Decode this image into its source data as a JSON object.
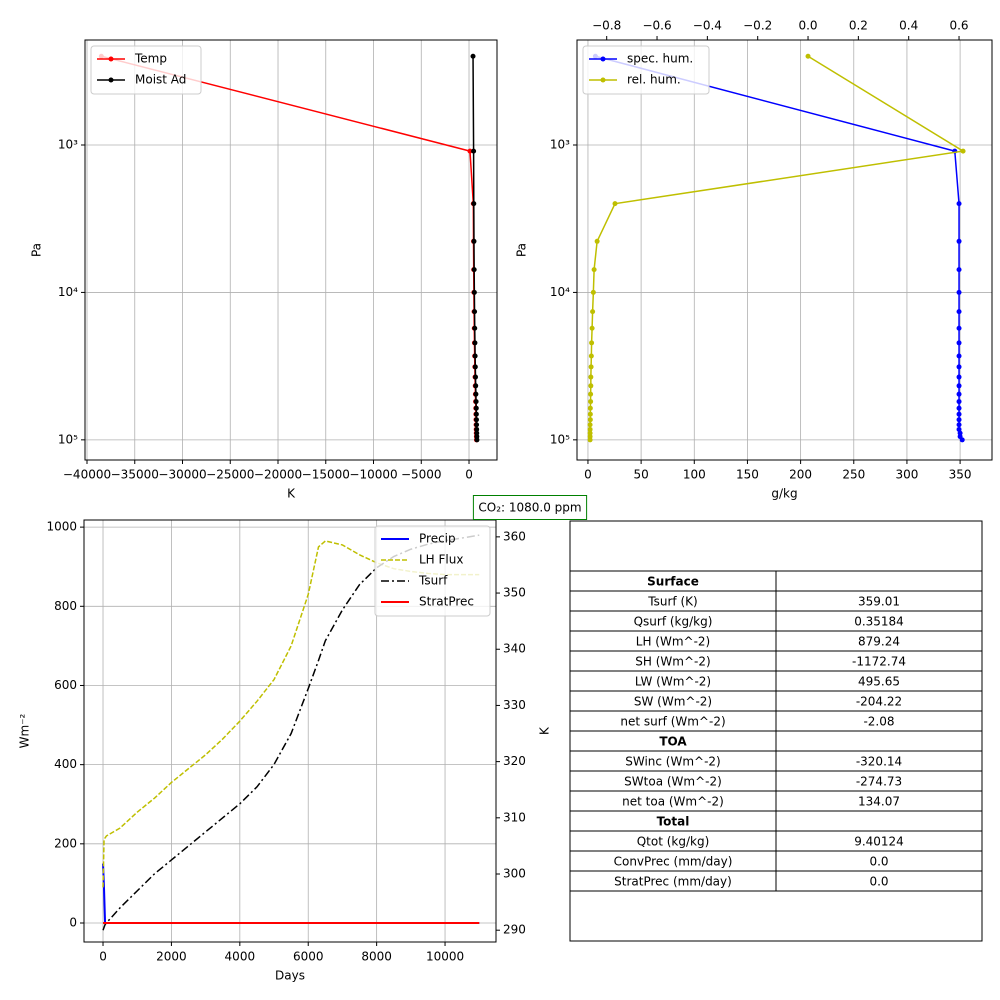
{
  "chart_data": [
    {
      "type": "line",
      "x_label": "K",
      "y_label": "Pa",
      "ylog": true,
      "grid": true,
      "legend": "upper left",
      "marker": true,
      "xlim": [
        -40210,
        2930
      ],
      "ylim": [
        137000,
        194
      ],
      "xticks": [
        {
          "value": -40000,
          "label": "−40000"
        },
        {
          "value": -35000,
          "label": "−35000"
        },
        {
          "value": -30000,
          "label": "−30000"
        },
        {
          "value": -25000,
          "label": "−25000"
        },
        {
          "value": -20000,
          "label": "−20000"
        },
        {
          "value": -15000,
          "label": "−15000"
        },
        {
          "value": -10000,
          "label": "−10000"
        },
        {
          "value": -5000,
          "label": "−5000"
        },
        0
      ],
      "yticks": [
        {
          "value": 1000,
          "label": "10³"
        },
        {
          "value": 10000,
          "label": "10⁴"
        },
        {
          "value": 100000,
          "label": "10⁵"
        }
      ],
      "series": [
        {
          "name": "Temp",
          "color": "#ff0000",
          "x": [
            -38500,
            100,
            450,
            470,
            490,
            510,
            530,
            550,
            570,
            590,
            610,
            630,
            650,
            670,
            690,
            710,
            720,
            730,
            740,
            750,
            760,
            770,
            780
          ],
          "values": [
            250,
            1100,
            2500,
            4500,
            7000,
            10000,
            13500,
            17500,
            22000,
            27000,
            32000,
            37500,
            43000,
            49000,
            55000,
            61000,
            67000,
            73000,
            79000,
            85000,
            90000,
            95000,
            100000
          ]
        },
        {
          "name": "Moist Ad",
          "color": "#000000",
          "x": [
            420,
            480,
            500,
            520,
            540,
            560,
            580,
            600,
            620,
            640,
            660,
            680,
            700,
            720,
            740,
            760,
            770,
            780,
            790,
            800,
            810,
            820,
            830
          ],
          "values": [
            250,
            1100,
            2500,
            4500,
            7000,
            10000,
            13500,
            17500,
            22000,
            27000,
            32000,
            37500,
            43000,
            49000,
            55000,
            61000,
            67000,
            73000,
            79000,
            85000,
            90000,
            95000,
            100000
          ]
        }
      ]
    },
    {
      "type": "line",
      "x_label": "g/kg",
      "y_label": "Pa",
      "ylog": true,
      "grid": true,
      "legend": "upper left",
      "marker": true,
      "xlim": [
        -10.3,
        380
      ],
      "x2lim": [
        -0.918,
        0.731
      ],
      "ylim": [
        137000,
        194
      ],
      "xticks": [
        0,
        50,
        100,
        150,
        200,
        250,
        300,
        350
      ],
      "x2ticks": [
        {
          "value": -0.8,
          "label": "−0.8"
        },
        {
          "value": -0.6,
          "label": "−0.6"
        },
        {
          "value": -0.4,
          "label": "−0.4"
        },
        {
          "value": -0.2,
          "label": "−0.2"
        },
        {
          "value": 0,
          "label": "0.0"
        },
        0.2,
        0.4,
        0.6
      ],
      "yticks": [
        {
          "value": 1000,
          "label": "10³"
        },
        {
          "value": 10000,
          "label": "10⁴"
        },
        {
          "value": 100000,
          "label": "10⁵"
        }
      ],
      "series": [
        {
          "name": "spec. hum.",
          "color": "#0000ff",
          "x": [
            7,
            345,
            349,
            349,
            349,
            349,
            349,
            349,
            349,
            349,
            349,
            349,
            349,
            349,
            349,
            349,
            349,
            349,
            349,
            349,
            350,
            350,
            352
          ],
          "values": [
            250,
            1100,
            2500,
            4500,
            7000,
            10000,
            13500,
            17500,
            22000,
            27000,
            32000,
            37500,
            43000,
            49000,
            55000,
            61000,
            67000,
            73000,
            79000,
            85000,
            90000,
            95000,
            100000
          ]
        },
        {
          "name": "rel. hum.",
          "color": "#bfbf00",
          "axis": "x2",
          "x": [
            0.0,
            0.616,
            -0.767,
            -0.838,
            -0.85,
            -0.853,
            -0.856,
            -0.858,
            -0.86,
            -0.861,
            -0.862,
            -0.863,
            -0.863,
            -0.864,
            -0.864,
            -0.865,
            -0.865,
            -0.865,
            -0.866,
            -0.866,
            -0.866,
            -0.866,
            -0.866
          ],
          "values": [
            250,
            1100,
            2500,
            4500,
            7000,
            10000,
            13500,
            17500,
            22000,
            27000,
            32000,
            37500,
            43000,
            49000,
            55000,
            61000,
            67000,
            73000,
            79000,
            85000,
            90000,
            95000,
            100000
          ]
        }
      ]
    },
    {
      "type": "line",
      "x_label": "Days",
      "y_label": "Wm⁻²",
      "y2_label": "K",
      "grid": true,
      "legend": "upper right",
      "marker": false,
      "annotation": "CO₂: 1080.0 ppm",
      "xlim": [
        -556,
        11490
      ],
      "ylim": [
        -48,
        1018
      ],
      "y2lim": [
        287.9,
        363.0
      ],
      "xticks": [
        0,
        2000,
        4000,
        6000,
        8000,
        10000
      ],
      "yticks": [
        0,
        200,
        400,
        600,
        800,
        1000
      ],
      "y2ticks": [
        290,
        300,
        310,
        320,
        330,
        340,
        350,
        360
      ],
      "x": [
        0,
        30,
        60,
        100,
        500,
        1000,
        1500,
        2000,
        2500,
        3000,
        3500,
        4000,
        4500,
        5000,
        5500,
        6000,
        6300,
        6500,
        7000,
        7500,
        8000,
        8500,
        9000,
        9500,
        10000,
        10500,
        11000
      ],
      "series": [
        {
          "name": "Precip",
          "color": "#0000ff",
          "linewidth": 2,
          "values": [
            150,
            85,
            0,
            0,
            0,
            0,
            0,
            0,
            0,
            0,
            0,
            0,
            0,
            0,
            0,
            0,
            0,
            0,
            0,
            0,
            0,
            0,
            0,
            0,
            0,
            0,
            0
          ]
        },
        {
          "name": "LH Flux",
          "color": "#bfbf00",
          "linestyle": "dashed",
          "values": [
            90,
            210,
            215,
            220,
            240,
            280,
            315,
            355,
            390,
            425,
            465,
            510,
            560,
            615,
            700,
            830,
            950,
            965,
            955,
            930,
            910,
            895,
            888,
            883,
            880,
            880,
            880
          ]
        },
        {
          "name": "Tsurf",
          "color": "#000000",
          "linestyle": "dashdot",
          "axis": "y2",
          "values": [
            290,
            290.5,
            291,
            291.3,
            294,
            297,
            300,
            302.5,
            305,
            307.5,
            310,
            312.5,
            315.5,
            319.5,
            325,
            333,
            338,
            341.5,
            347,
            351.5,
            354.5,
            356.5,
            357.8,
            358.7,
            359.3,
            359.8,
            360.3
          ]
        },
        {
          "name": "StratPrec",
          "color": "#ff0000",
          "linewidth": 2,
          "values": [
            0,
            0,
            0,
            0,
            0,
            0,
            0,
            0,
            0,
            0,
            0,
            0,
            0,
            0,
            0,
            0,
            0,
            0,
            0,
            0,
            0,
            0,
            0,
            0,
            0,
            0,
            0
          ]
        }
      ]
    }
  ],
  "table": {
    "rows": [
      [
        "Surface"
      ],
      [
        "Tsurf (K)",
        "359.01"
      ],
      [
        "Qsurf (kg/kg)",
        "0.35184"
      ],
      [
        "LH (Wm^-2)",
        "879.24"
      ],
      [
        "SH (Wm^-2)",
        "-1172.74"
      ],
      [
        "LW (Wm^-2)",
        "495.65"
      ],
      [
        "SW (Wm^-2)",
        "-204.22"
      ],
      [
        "net surf (Wm^-2)",
        "-2.08"
      ],
      [
        "TOA"
      ],
      [
        "SWinc (Wm^-2)",
        "-320.14"
      ],
      [
        "SWtoa (Wm^-2)",
        "-274.73"
      ],
      [
        "net toa (Wm^-2)",
        "134.07"
      ],
      [
        "Total"
      ],
      [
        "Qtot (kg/kg)",
        "9.40124"
      ],
      [
        "ConvPrec (mm/day)",
        "0.0"
      ],
      [
        "StratPrec (mm/day)",
        "0.0"
      ]
    ]
  }
}
